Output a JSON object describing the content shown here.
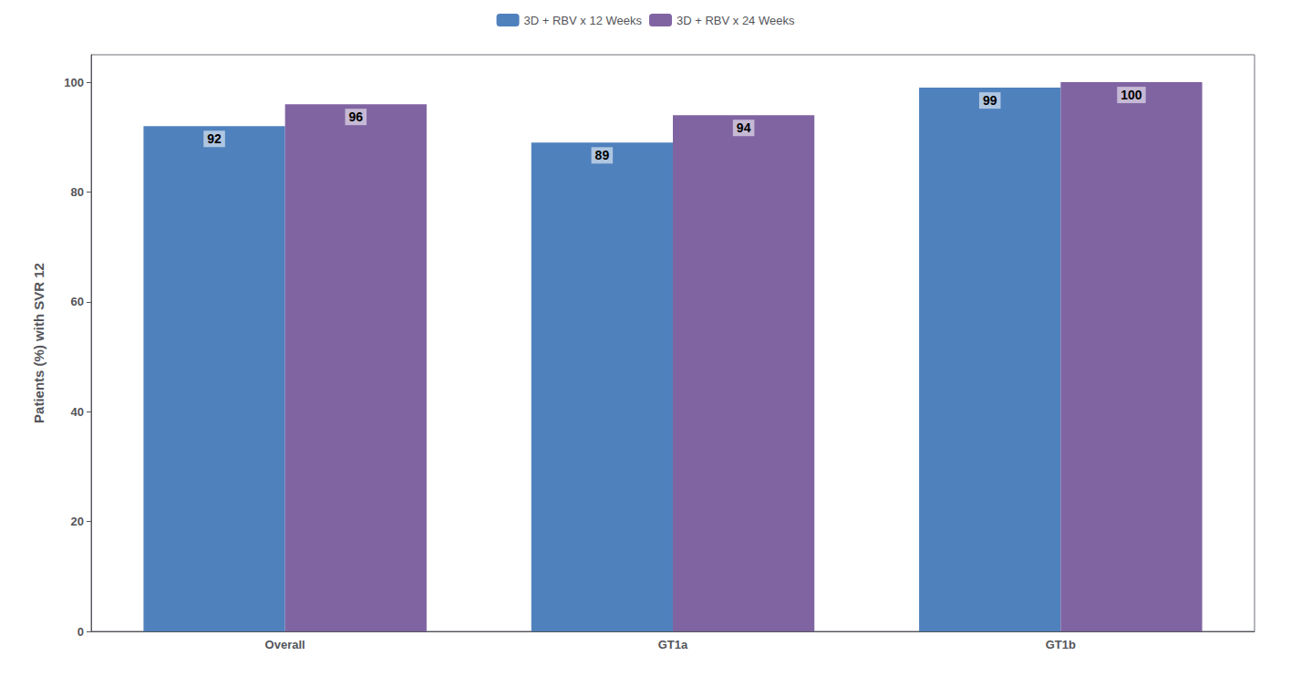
{
  "chart_data": {
    "type": "bar",
    "categories": [
      "Overall",
      "GT1a",
      "GT1b"
    ],
    "series": [
      {
        "name": "3D + RBV x 12 Weeks",
        "color": "#4F81BD",
        "values": [
          92,
          89,
          99
        ]
      },
      {
        "name": "3D + RBV x 24 Weeks",
        "color": "#8064A2",
        "values": [
          96,
          94,
          100
        ]
      }
    ],
    "ylabel": "Patients (%) with SVR 12",
    "ylim": [
      0,
      105
    ],
    "yticks": [
      0,
      20,
      40,
      60,
      80,
      100
    ],
    "grid": false,
    "legend": "top",
    "data_labels": true
  }
}
